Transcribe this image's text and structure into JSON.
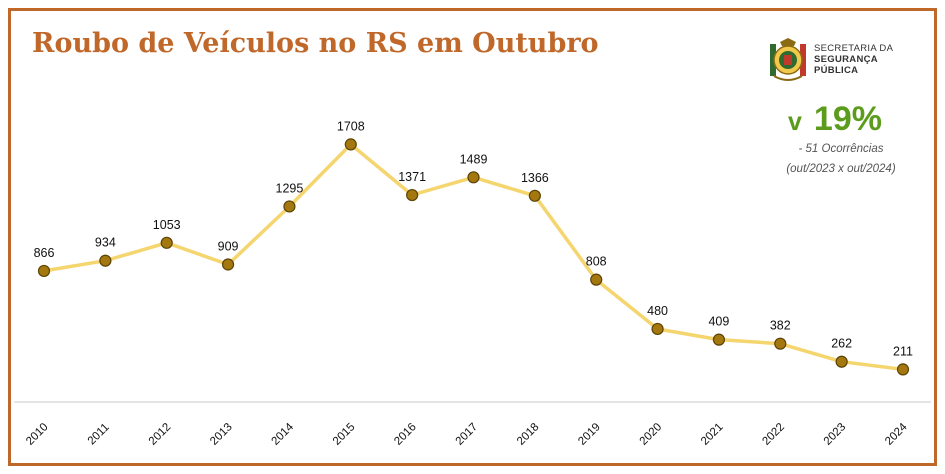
{
  "title": "Roubo de Veículos no RS em Outubro",
  "logo": {
    "line1": "SECRETARIA DA",
    "line2": "SEGURANÇA",
    "line3": "PÚBLICA"
  },
  "change": {
    "arrow": "v",
    "value": "19%",
    "note_occurrences": "- 51 Ocorrências",
    "note_period": "(out/2023 x out/2024)"
  },
  "colors": {
    "frame": "#c0682a",
    "title": "#c0682a",
    "line": "#f4d56e",
    "marker_fill": "#a5780f",
    "marker_stroke": "#5a4305",
    "change": "#5c9c1c"
  },
  "chart_data": {
    "type": "line",
    "title": "Roubo de Veículos no RS em Outubro",
    "xlabel": "",
    "ylabel": "",
    "categories": [
      "2010",
      "2011",
      "2012",
      "2013",
      "2014",
      "2015",
      "2016",
      "2017",
      "2018",
      "2019",
      "2020",
      "2021",
      "2022",
      "2023",
      "2024"
    ],
    "series": [
      {
        "values": [
          866,
          934,
          1053,
          909,
          1295,
          1708,
          1371,
          1489,
          1366,
          808,
          480,
          409,
          382,
          262,
          211
        ]
      }
    ],
    "data_labels": true,
    "grid": false,
    "legend": "none",
    "xtick_rotation": -45
  }
}
